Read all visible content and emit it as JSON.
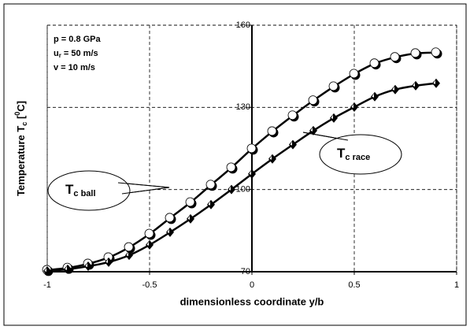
{
  "chart_data": {
    "type": "line",
    "xlabel": "dimensionless coordinate  y/b",
    "ylabel": [
      "Temperature T",
      "c",
      " [",
      "0",
      "C]"
    ],
    "annotations": [
      {
        "text": "p",
        "sub": "",
        "rest": "  = 0.8 GPa"
      },
      {
        "text": "u",
        "sub": "r",
        "rest": " = 50 m/s"
      },
      {
        "text": "v",
        "sub": "",
        "rest": "  = 10 m/s"
      }
    ],
    "x": [
      -1,
      -0.9,
      -0.8,
      -0.7,
      -0.6,
      -0.5,
      -0.4,
      -0.3,
      -0.2,
      -0.1,
      0,
      0.1,
      0.2,
      0.3,
      0.4,
      0.5,
      0.6,
      0.7,
      0.8,
      0.9
    ],
    "series": [
      {
        "name": "T",
        "name_sub": "c ball",
        "color": "#000000",
        "marker": "circle",
        "values": [
          70.6,
          71.4,
          72.9,
          75.2,
          78.9,
          83.8,
          89.6,
          95.3,
          101.7,
          108.0,
          114.9,
          121.2,
          127.0,
          132.5,
          137.6,
          142.2,
          146.0,
          148.3,
          149.7,
          150.0
        ]
      },
      {
        "name": "T",
        "name_sub": "c race",
        "color": "#000000",
        "marker": "diamond",
        "values": [
          70.3,
          70.9,
          72.0,
          73.5,
          76.0,
          79.8,
          84.4,
          89.3,
          94.5,
          100.0,
          105.7,
          111.2,
          116.4,
          121.5,
          126.1,
          130.1,
          133.9,
          136.5,
          137.9,
          138.8
        ]
      }
    ],
    "xlim": [
      -1,
      1
    ],
    "xticks": [
      -1,
      -0.5,
      0,
      0.5,
      1
    ],
    "ylim": [
      70,
      160
    ],
    "yticks": [
      70,
      100,
      130,
      160
    ],
    "grid": true
  }
}
